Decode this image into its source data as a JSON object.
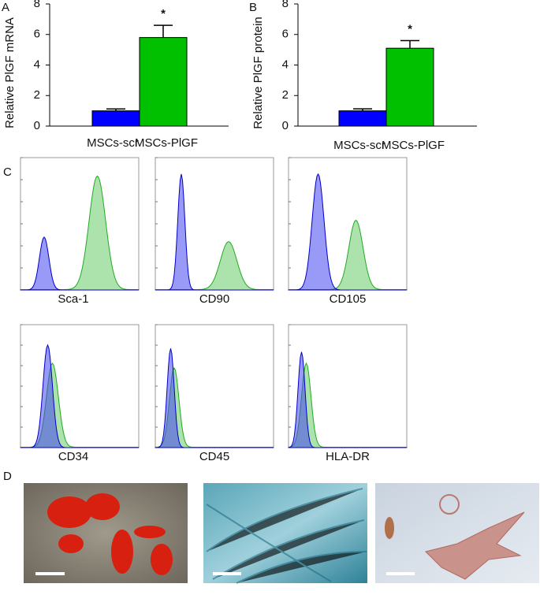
{
  "chart_data": [
    {
      "type": "bar",
      "panel": "A",
      "ylabel": "Relative PlGF mRNA",
      "categories": [
        "MSCs-scr",
        "MSCs-PlGF"
      ],
      "values": [
        1,
        5.8
      ],
      "errors": [
        0.12,
        0.8
      ],
      "colors": [
        "#0000ff",
        "#00c000"
      ],
      "annotations": [
        null,
        "*"
      ],
      "ylim": [
        0,
        8
      ],
      "yticks": [
        0,
        2,
        4,
        6,
        8
      ]
    },
    {
      "type": "bar",
      "panel": "B",
      "ylabel": "Relative PlGF protein",
      "categories": [
        "MSCs-scr",
        "MSCs-PlGF"
      ],
      "values": [
        1,
        5.1
      ],
      "errors": [
        0.13,
        0.5
      ],
      "colors": [
        "#0000ff",
        "#00c000"
      ],
      "annotations": [
        null,
        "*"
      ],
      "ylim": [
        0,
        8
      ],
      "yticks": [
        0,
        2,
        4,
        6,
        8
      ]
    }
  ],
  "panel_c": {
    "label": "C",
    "markers": [
      "Sca-1",
      "CD90",
      "CD105",
      "CD34",
      "CD45",
      "HLA-DR"
    ]
  },
  "panel_d": {
    "label": "D"
  }
}
